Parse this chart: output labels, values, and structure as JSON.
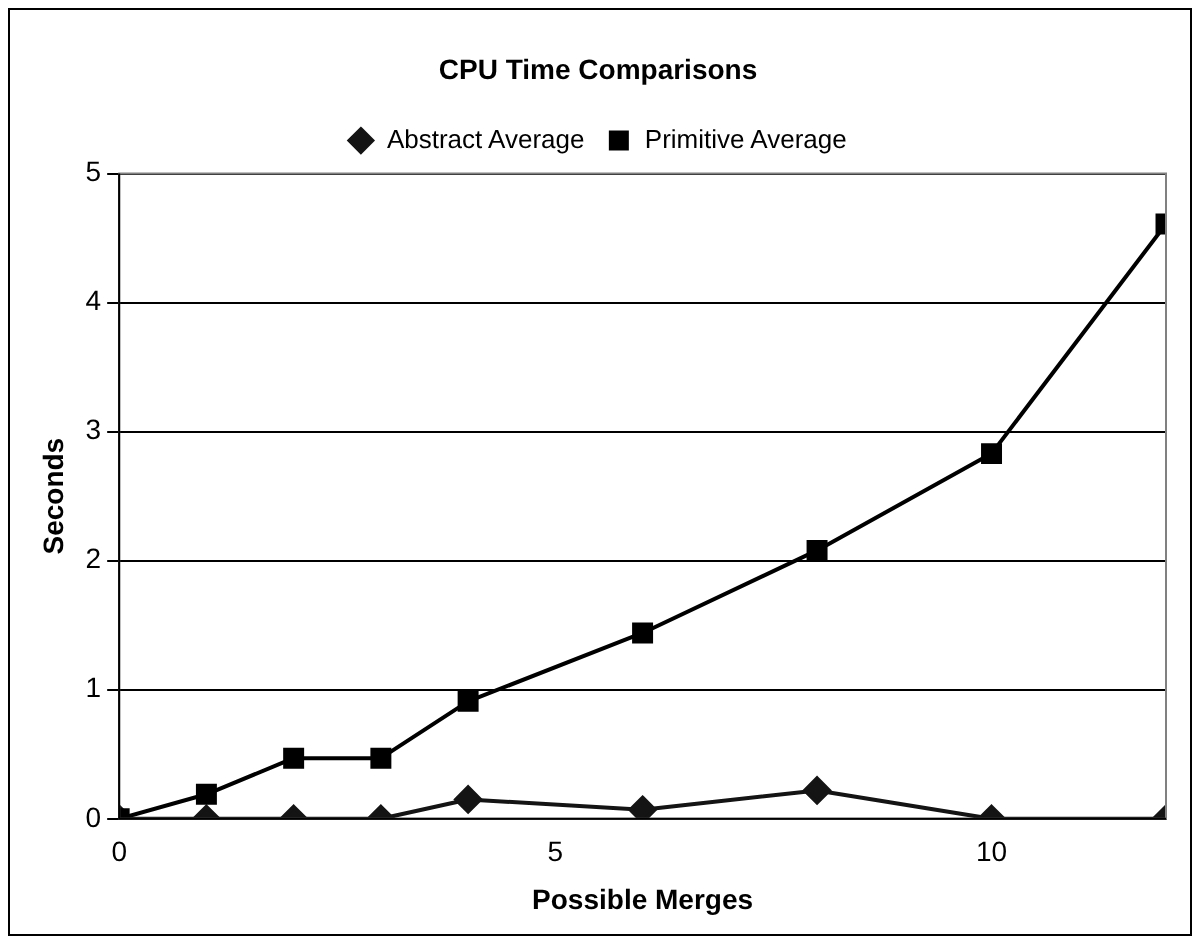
{
  "chart_data": {
    "type": "line",
    "title": "CPU Time Comparisons",
    "xlabel": "Possible Merges",
    "ylabel": "Seconds",
    "x": [
      0,
      1,
      2,
      3,
      4,
      6,
      8,
      10,
      12
    ],
    "series": [
      {
        "name": "Abstract Average",
        "color": "#141414",
        "marker": "diamond",
        "values": [
          0,
          0,
          0,
          0,
          0.15,
          0.07,
          0.22,
          0,
          0
        ]
      },
      {
        "name": "Primitive Average",
        "color": "#000000",
        "marker": "square",
        "values": [
          0,
          0.19,
          0.47,
          0.47,
          0.91,
          1.44,
          2.08,
          2.83,
          4.61
        ]
      }
    ],
    "xlim": [
      0,
      12
    ],
    "xticks": [
      0,
      5,
      10
    ],
    "ylim": [
      0,
      5
    ],
    "yticks": [
      0,
      1,
      2,
      3,
      4,
      5
    ],
    "grid": "y",
    "legend": "top",
    "line_style": "solid"
  }
}
